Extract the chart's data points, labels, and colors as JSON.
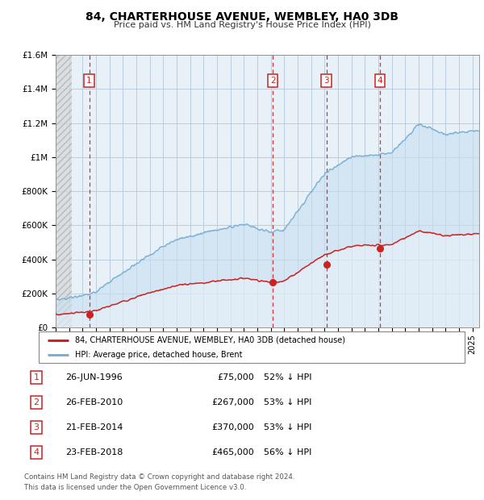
{
  "title": "84, CHARTERHOUSE AVENUE, WEMBLEY, HA0 3DB",
  "subtitle": "Price paid vs. HM Land Registry's House Price Index (HPI)",
  "ylim": [
    0,
    1600000
  ],
  "xlim_start": 1994.0,
  "xlim_end": 2025.5,
  "hpi_color": "#7ab0d4",
  "hpi_fill_color": "#c8dff0",
  "price_color": "#cc2222",
  "dashed_line_color": "#cc2222",
  "grid_color": "#bbccdd",
  "plot_bg_color": "#e8f0f8",
  "hatch_color": "#c8c8c8",
  "legend_label_red": "84, CHARTERHOUSE AVENUE, WEMBLEY, HA0 3DB (detached house)",
  "legend_label_blue": "HPI: Average price, detached house, Brent",
  "sale_points": [
    {
      "num": 1,
      "year": 1996.49,
      "price": 75000,
      "label": "26-JUN-1996",
      "amount": "£75,000",
      "pct": "52% ↓ HPI"
    },
    {
      "num": 2,
      "year": 2010.15,
      "price": 267000,
      "label": "26-FEB-2010",
      "amount": "£267,000",
      "pct": "53% ↓ HPI"
    },
    {
      "num": 3,
      "year": 2014.13,
      "price": 370000,
      "label": "21-FEB-2014",
      "amount": "£370,000",
      "pct": "53% ↓ HPI"
    },
    {
      "num": 4,
      "year": 2018.13,
      "price": 465000,
      "label": "23-FEB-2018",
      "amount": "£465,000",
      "pct": "56% ↓ HPI"
    }
  ],
  "footnote1": "Contains HM Land Registry data © Crown copyright and database right 2024.",
  "footnote2": "This data is licensed under the Open Government Licence v3.0."
}
